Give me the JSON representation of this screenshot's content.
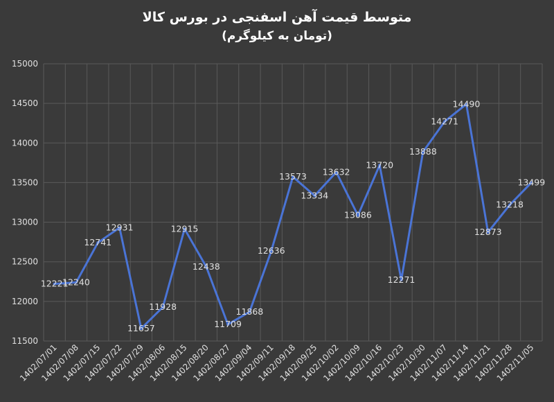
{
  "chart_data": {
    "type": "line",
    "title": "متوسط قیمت آهن اسفنجی در بورس کالا",
    "subtitle": "(تومان به کیلوگرم)",
    "xlabel": "",
    "ylabel": "",
    "ylim": [
      11500,
      15000
    ],
    "yticks": [
      11500,
      12000,
      12500,
      13000,
      13500,
      14000,
      14500,
      15000
    ],
    "grid": true,
    "legend": "none",
    "categories": [
      "1402/07/01",
      "1402/07/08",
      "1402/07/15",
      "1402/07/22",
      "1402/07/29",
      "1402/08/06",
      "1402/08/15",
      "1402/08/20",
      "1402/08/27",
      "1402/09/04",
      "1402/09/11",
      "1402/09/18",
      "1402/09/25",
      "1402/10/02",
      "1402/10/09",
      "1402/10/16",
      "1402/10/23",
      "1402/10/30",
      "1402/11/07",
      "1402/11/14",
      "1402/11/21",
      "1402/11/28",
      "1402/11/05"
    ],
    "series": [
      {
        "values": [
          12221,
          12240,
          12741,
          12931,
          11657,
          11928,
          12915,
          12438,
          11709,
          11868,
          12636,
          13573,
          13334,
          13632,
          13086,
          13720,
          12271,
          13888,
          14271,
          14490,
          12873,
          13218,
          13499
        ]
      }
    ],
    "colors": {
      "background": "#3a3a3a",
      "line": "#4a74d6",
      "grid": "#5a5a5a",
      "text": "#e0e0e0",
      "title": "#ffffff"
    }
  }
}
